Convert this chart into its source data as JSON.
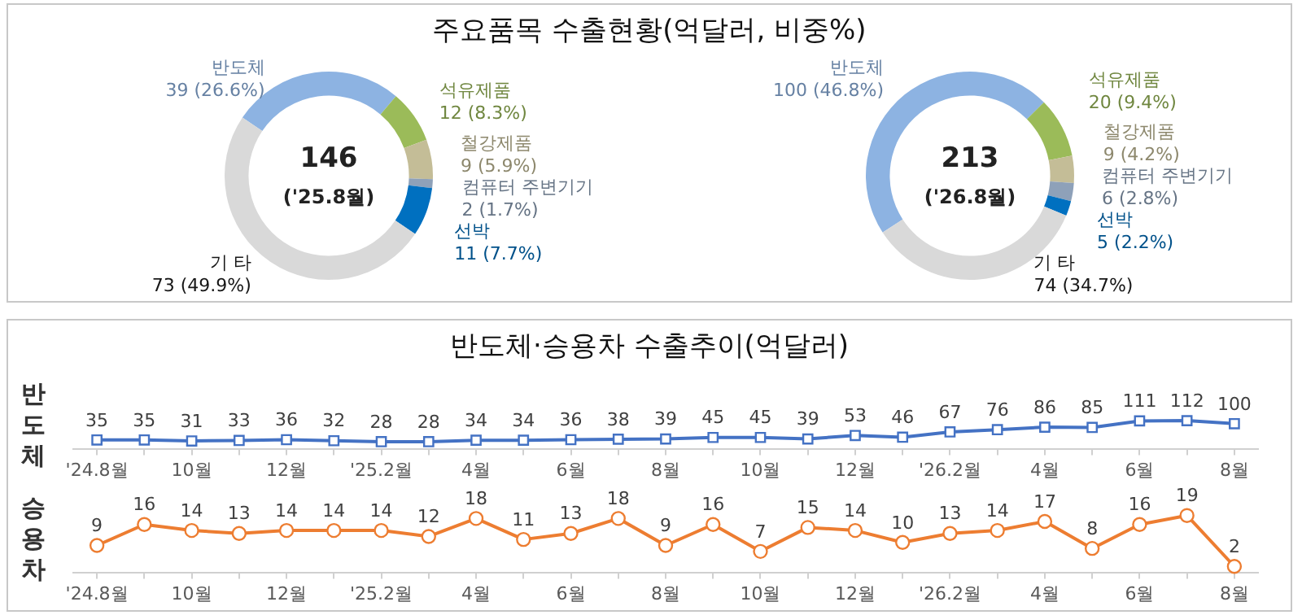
{
  "chart_data": [
    {
      "type": "donut",
      "title": "주요품목 수출현황(억달러, 비중%)",
      "categories": [
        "반도체",
        "석유제품",
        "철강제품",
        "컴퓨터 주변기기",
        "선박",
        "기 타"
      ],
      "values": [
        39,
        12,
        9,
        2,
        11,
        73
      ],
      "colors": [
        "#8db3e2",
        "#9bbb59",
        "#c4bd97",
        "#8ea1b9",
        "#0070c0",
        "#d9d9d9"
      ],
      "value_labels": [
        "39 (26.6%)",
        "12 (8.3%)",
        "9 (5.9%)",
        "2 (1.7%)",
        "11 (7.7%)",
        "73 (49.9%)"
      ],
      "annotations": [
        "146",
        "('25.8월)"
      ],
      "legend": false
    },
    {
      "type": "donut",
      "categories": [
        "반도체",
        "석유제품",
        "철강제품",
        "컴퓨터 주변기기",
        "선박",
        "기 타"
      ],
      "values": [
        100,
        20,
        9,
        6,
        5,
        74
      ],
      "colors": [
        "#8db3e2",
        "#9bbb59",
        "#c4bd97",
        "#8ea1b9",
        "#0070c0",
        "#d9d9d9"
      ],
      "value_labels": [
        "100 (46.8%)",
        "20 (9.4%)",
        "9 (4.2%)",
        "6 (2.8%)",
        "5 (2.2%)",
        "74 (34.7%)"
      ],
      "annotations": [
        "213",
        "('26.8월)"
      ],
      "legend": false
    },
    {
      "type": "line",
      "title": "반도체·승용차 수출추이(억달러)",
      "ylabel": "반도체",
      "categories": [
        "'24.8월",
        null,
        "10월",
        null,
        "12월",
        null,
        "'25.2월",
        null,
        "4월",
        null,
        "6월",
        null,
        "8월",
        null,
        "10월",
        null,
        "12월",
        null,
        "'26.2월",
        null,
        "4월",
        null,
        "6월",
        null,
        "8월"
      ],
      "series": [
        {
          "color": "#4472c4",
          "values": [
            35,
            35,
            31,
            33,
            36,
            32,
            28,
            28,
            34,
            34,
            36,
            38,
            39,
            45,
            45,
            39,
            53,
            46,
            67,
            76,
            86,
            85,
            111,
            112,
            100
          ]
        }
      ],
      "marker": "square",
      "data_labels": true,
      "legend": false
    },
    {
      "type": "line",
      "ylabel": "승용차",
      "categories": [
        "'24.8월",
        null,
        "10월",
        null,
        "12월",
        null,
        "'25.2월",
        null,
        "4월",
        null,
        "6월",
        null,
        "8월",
        null,
        "10월",
        null,
        "12월",
        null,
        "'26.2월",
        null,
        "4월",
        null,
        "6월",
        null,
        "8월"
      ],
      "series": [
        {
          "color": "#ed7d31",
          "values": [
            9,
            16,
            14,
            13,
            14,
            14,
            14,
            12,
            18,
            11,
            13,
            18,
            9,
            16,
            7,
            15,
            14,
            10,
            13,
            14,
            17,
            8,
            16,
            19,
            2
          ]
        }
      ],
      "marker": "circle",
      "data_labels": true,
      "legend": false
    }
  ]
}
